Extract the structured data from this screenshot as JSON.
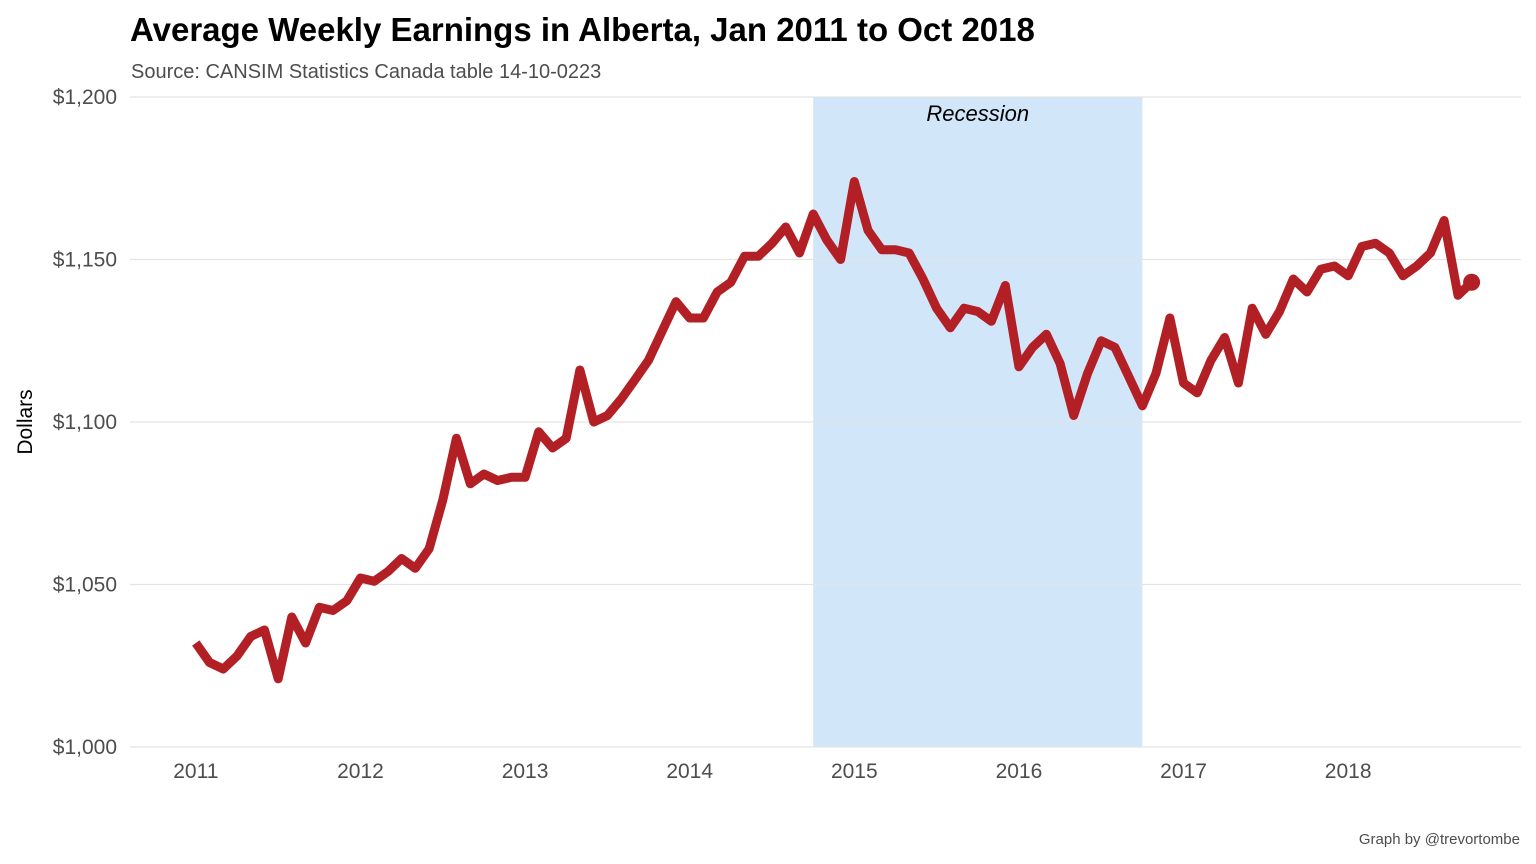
{
  "chart_data": {
    "type": "line",
    "title": "Average Weekly Earnings in Alberta, Jan 2011 to Oct 2018",
    "subtitle": "Source: CANSIM Statistics Canada table 14-10-0223",
    "ylabel": "Dollars",
    "xlabel": "",
    "caption": "Graph by @trevortombe",
    "xlim": [
      2010.6,
      2019.05
    ],
    "ylim": [
      1000,
      1200
    ],
    "y_ticks": [
      1000,
      1050,
      1100,
      1150,
      1200
    ],
    "y_tick_labels": [
      "$1,000",
      "$1,050",
      "$1,100",
      "$1,150",
      "$1,200"
    ],
    "x_ticks": [
      2011,
      2012,
      2013,
      2014,
      2015,
      2016,
      2017,
      2018
    ],
    "x_tick_labels": [
      "2011",
      "2012",
      "2013",
      "2014",
      "2015",
      "2016",
      "2017",
      "2018"
    ],
    "grid": true,
    "legend": "none",
    "line_color": "#b22025",
    "shade_color": "#d2e6fa",
    "annotation": {
      "text": "Recession",
      "x_start": 2014.75,
      "x_end": 2016.75
    },
    "end_marker": true,
    "series": [
      {
        "x": [
          2011.0,
          2011.083,
          2011.167,
          2011.25,
          2011.333,
          2011.417,
          2011.5,
          2011.583,
          2011.667,
          2011.75,
          2011.833,
          2011.917,
          2012.0,
          2012.083,
          2012.167,
          2012.25,
          2012.333,
          2012.417,
          2012.5,
          2012.583,
          2012.667,
          2012.75,
          2012.833,
          2012.917,
          2013.0,
          2013.083,
          2013.167,
          2013.25,
          2013.333,
          2013.417,
          2013.5,
          2013.583,
          2013.667,
          2013.75,
          2013.833,
          2013.917,
          2014.0,
          2014.083,
          2014.167,
          2014.25,
          2014.333,
          2014.417,
          2014.5,
          2014.583,
          2014.667,
          2014.75,
          2014.833,
          2014.917,
          2015.0,
          2015.083,
          2015.167,
          2015.25,
          2015.333,
          2015.417,
          2015.5,
          2015.583,
          2015.667,
          2015.75,
          2015.833,
          2015.917,
          2016.0,
          2016.083,
          2016.167,
          2016.25,
          2016.333,
          2016.417,
          2016.5,
          2016.583,
          2016.667,
          2016.75,
          2016.833,
          2016.917,
          2017.0,
          2017.083,
          2017.167,
          2017.25,
          2017.333,
          2017.417,
          2017.5,
          2017.583,
          2017.667,
          2017.75,
          2017.833,
          2017.917,
          2018.0,
          2018.083,
          2018.167,
          2018.25,
          2018.333,
          2018.417,
          2018.5,
          2018.583,
          2018.667,
          2018.75
        ],
        "values": [
          1032,
          1026,
          1024,
          1028,
          1034,
          1036,
          1021,
          1040,
          1032,
          1043,
          1042,
          1045,
          1052,
          1051,
          1054,
          1058,
          1055,
          1061,
          1076,
          1095,
          1081,
          1084,
          1082,
          1083,
          1083,
          1097,
          1092,
          1095,
          1116,
          1100,
          1102,
          1107,
          1113,
          1119,
          1128,
          1137,
          1132,
          1132,
          1140,
          1143,
          1151,
          1151,
          1155,
          1160,
          1152,
          1164,
          1156,
          1150,
          1174,
          1159,
          1153,
          1153,
          1152,
          1144,
          1135,
          1129,
          1135,
          1134,
          1131,
          1142,
          1117,
          1123,
          1127,
          1118,
          1102,
          1115,
          1125,
          1123,
          1114,
          1105,
          1115,
          1132,
          1112,
          1109,
          1119,
          1126,
          1112,
          1135,
          1127,
          1134,
          1144,
          1140,
          1147,
          1148,
          1145,
          1154,
          1155,
          1152,
          1145,
          1148,
          1152,
          1162,
          1139,
          1143
        ]
      }
    ]
  }
}
